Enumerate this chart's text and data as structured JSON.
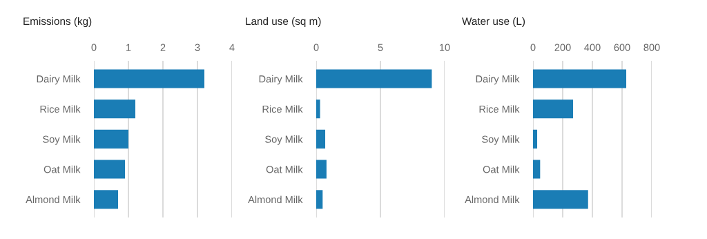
{
  "chart_data": [
    {
      "type": "bar",
      "orientation": "horizontal",
      "title": "Emissions (kg)",
      "categories": [
        "Dairy Milk",
        "Rice Milk",
        "Soy Milk",
        "Oat Milk",
        "Almond Milk"
      ],
      "values": [
        3.2,
        1.2,
        1.0,
        0.9,
        0.7
      ],
      "color": "#1a7db5",
      "xlim": [
        0,
        4
      ],
      "xticks": [
        0,
        1,
        2,
        3,
        4
      ],
      "grid": "x"
    },
    {
      "type": "bar",
      "orientation": "horizontal",
      "title": "Land use (sq m)",
      "categories": [
        "Dairy Milk",
        "Rice Milk",
        "Soy Milk",
        "Oat Milk",
        "Almond Milk"
      ],
      "values": [
        9.0,
        0.3,
        0.7,
        0.8,
        0.5
      ],
      "color": "#1a7db5",
      "xlim": [
        0,
        10
      ],
      "xticks": [
        0,
        5,
        10
      ],
      "grid": "x"
    },
    {
      "type": "bar",
      "orientation": "horizontal",
      "title": "Water use (L)",
      "categories": [
        "Dairy Milk",
        "Rice Milk",
        "Soy Milk",
        "Oat Milk",
        "Almond Milk"
      ],
      "values": [
        628,
        270,
        28,
        48,
        371
      ],
      "color": "#1a7db5",
      "xlim": [
        0,
        800
      ],
      "xticks": [
        0,
        200,
        400,
        600,
        800
      ],
      "grid": "x"
    }
  ]
}
